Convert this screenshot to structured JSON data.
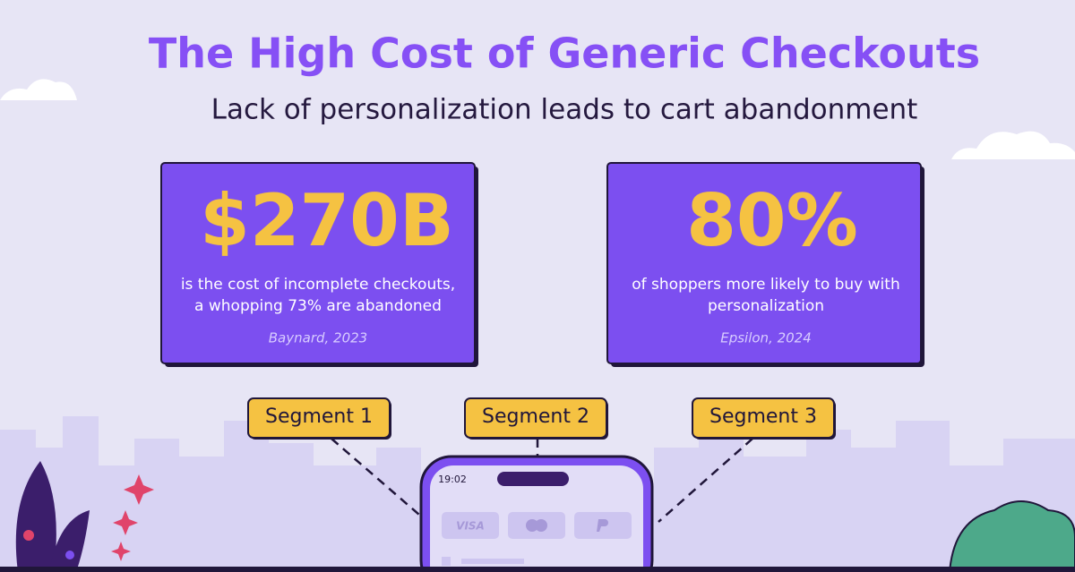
{
  "header": {
    "title": "The High Cost of Generic Checkouts",
    "subtitle": "Lack of personalization leads to cart abandonment"
  },
  "stats": [
    {
      "value": "$270B",
      "description": [
        "is the cost of incomplete checkouts,",
        "a whopping 73% are abandoned"
      ],
      "source": "Baynard, 2023"
    },
    {
      "value": "80%",
      "description": [
        "of shoppers more likely to buy with",
        "personalization"
      ],
      "source": "Epsilon, 2024"
    }
  ],
  "segments": [
    "Segment 1",
    "Segment 2",
    "Segment 3"
  ],
  "phone": {
    "time": "19:02",
    "payment": "VISA"
  }
}
